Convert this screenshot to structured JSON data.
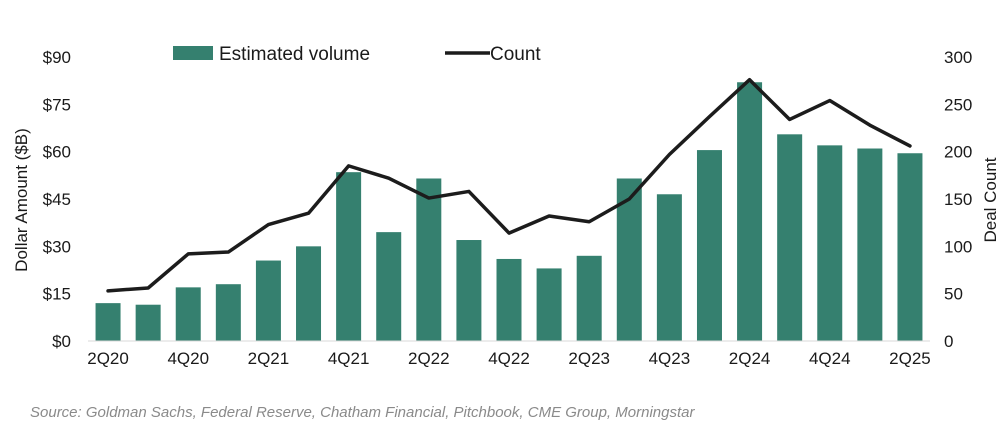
{
  "chart_data": {
    "type": "bar",
    "categories": [
      "2Q20",
      "3Q20",
      "4Q20",
      "1Q21",
      "2Q21",
      "3Q21",
      "4Q21",
      "1Q22",
      "2Q22",
      "3Q22",
      "4Q22",
      "1Q23",
      "2Q23",
      "3Q23",
      "4Q23",
      "1Q24",
      "2Q24",
      "3Q24",
      "4Q24",
      "1Q25",
      "2Q25"
    ],
    "x_tick_labels": [
      "2Q20",
      "4Q20",
      "2Q21",
      "4Q21",
      "2Q22",
      "4Q22",
      "2Q23",
      "4Q23",
      "2Q24",
      "4Q24",
      "2Q25"
    ],
    "series": [
      {
        "name": "Estimated volume",
        "type": "bar",
        "axis": "left",
        "color": "#35806f",
        "values": [
          12,
          11.5,
          17,
          18,
          25.5,
          30,
          53.5,
          34.5,
          51.5,
          32,
          26,
          23,
          27,
          51.5,
          46.5,
          60.5,
          82,
          65.5,
          62,
          61,
          59.5
        ]
      },
      {
        "name": "Count",
        "type": "line",
        "axis": "right",
        "color": "#1c1c1c",
        "values": [
          53,
          56,
          92,
          94,
          123,
          135,
          185,
          172,
          151,
          158,
          114,
          132,
          126,
          150,
          197,
          237,
          276,
          234,
          254,
          228,
          206
        ]
      }
    ],
    "ylabel": "Dollar Amount ($B)",
    "y2label": "Deal Count",
    "ylim": [
      0,
      90
    ],
    "y2lim": [
      0,
      300
    ],
    "y_ticks": [
      0,
      15,
      30,
      45,
      60,
      75,
      90
    ],
    "y_tick_labels": [
      "$0",
      "$15",
      "$30",
      "$45",
      "$60",
      "$75",
      "$90"
    ],
    "y2_ticks": [
      0,
      50,
      100,
      150,
      200,
      250,
      300
    ],
    "y2_tick_labels": [
      "0",
      "50",
      "100",
      "150",
      "200",
      "250",
      "300"
    ],
    "grid": false,
    "legend_position": "top-center"
  },
  "source": "Source: Goldman Sachs, Federal Reserve, Chatham Financial, Pitchbook, CME Group, Morningstar"
}
